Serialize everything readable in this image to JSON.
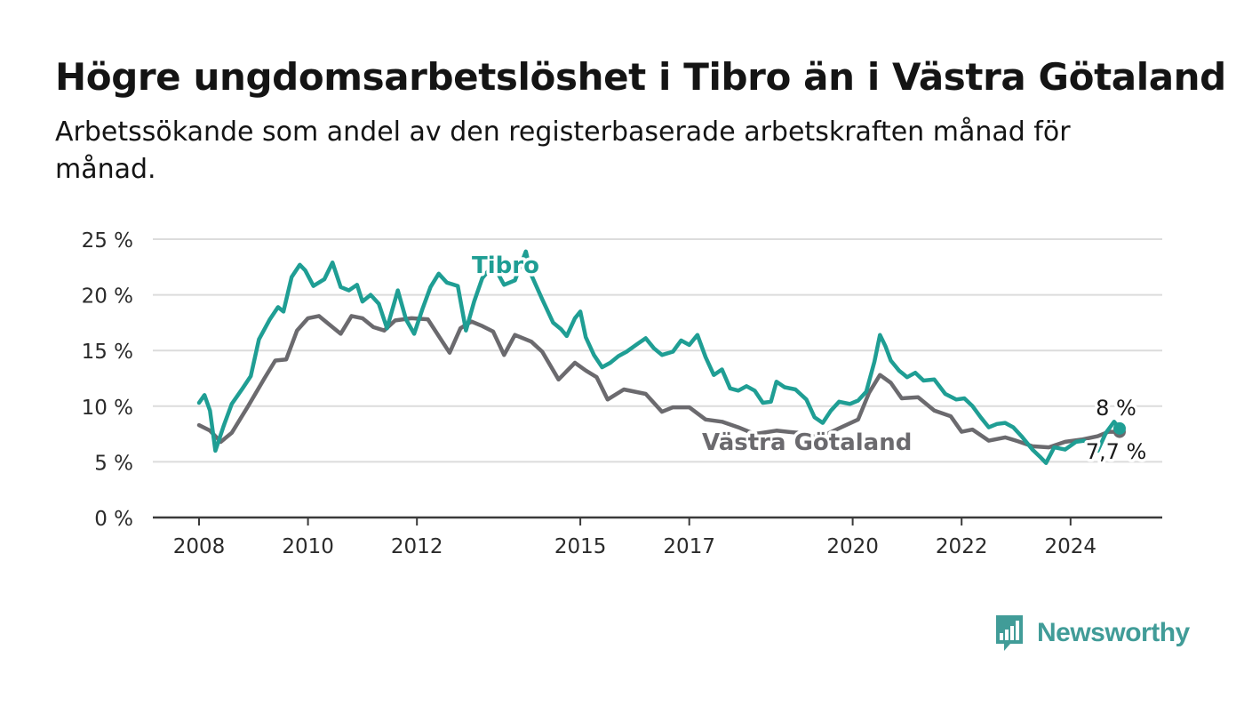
{
  "header": {
    "title": "Högre ungdomsarbetslöshet i Tibro än i Västra Götaland",
    "subtitle": "Arbetssökande som andel av den registerbaserade arbetskraften månad för månad."
  },
  "brand": {
    "name": "Newsworthy",
    "color": "#419c98"
  },
  "chart_data": {
    "type": "line",
    "ylim": [
      0,
      25
    ],
    "y_ticks": [
      0,
      5,
      10,
      15,
      20,
      25
    ],
    "y_tick_labels": [
      "0 %",
      "5 %",
      "10 %",
      "15 %",
      "20 %",
      "25 %"
    ],
    "x_ticks": [
      2008,
      2010,
      2012,
      2015,
      2017,
      2020,
      2022,
      2024
    ],
    "x_tick_labels": [
      "2008",
      "2010",
      "2012",
      "2015",
      "2017",
      "2020",
      "2022",
      "2024"
    ],
    "grid": true,
    "series": [
      {
        "name": "Västra Götaland",
        "color": "#6b6a6e",
        "end_label": "7,7 %",
        "points": [
          [
            2008.0,
            8.3
          ],
          [
            2008.2,
            7.8
          ],
          [
            2008.4,
            6.8
          ],
          [
            2008.6,
            7.6
          ],
          [
            2008.9,
            10.0
          ],
          [
            2009.2,
            12.5
          ],
          [
            2009.4,
            14.1
          ],
          [
            2009.6,
            14.2
          ],
          [
            2009.8,
            16.8
          ],
          [
            2010.0,
            17.9
          ],
          [
            2010.2,
            18.1
          ],
          [
            2010.4,
            17.3
          ],
          [
            2010.6,
            16.5
          ],
          [
            2010.8,
            18.1
          ],
          [
            2011.0,
            17.9
          ],
          [
            2011.2,
            17.1
          ],
          [
            2011.4,
            16.8
          ],
          [
            2011.6,
            17.7
          ],
          [
            2011.9,
            17.9
          ],
          [
            2012.2,
            17.8
          ],
          [
            2012.4,
            16.3
          ],
          [
            2012.6,
            14.8
          ],
          [
            2012.8,
            17.0
          ],
          [
            2013.0,
            17.6
          ],
          [
            2013.2,
            17.2
          ],
          [
            2013.4,
            16.7
          ],
          [
            2013.6,
            14.6
          ],
          [
            2013.8,
            16.4
          ],
          [
            2014.1,
            15.8
          ],
          [
            2014.3,
            14.9
          ],
          [
            2014.6,
            12.4
          ],
          [
            2014.9,
            13.9
          ],
          [
            2015.1,
            13.2
          ],
          [
            2015.3,
            12.6
          ],
          [
            2015.5,
            10.6
          ],
          [
            2015.8,
            11.5
          ],
          [
            2016.2,
            11.1
          ],
          [
            2016.5,
            9.5
          ],
          [
            2016.7,
            9.9
          ],
          [
            2017.0,
            9.9
          ],
          [
            2017.3,
            8.8
          ],
          [
            2017.6,
            8.6
          ],
          [
            2017.9,
            8.1
          ],
          [
            2018.2,
            7.5
          ],
          [
            2018.6,
            7.8
          ],
          [
            2019.0,
            7.6
          ],
          [
            2019.4,
            7.2
          ],
          [
            2019.7,
            7.9
          ],
          [
            2020.1,
            8.8
          ],
          [
            2020.3,
            11.2
          ],
          [
            2020.5,
            12.8
          ],
          [
            2020.7,
            12.1
          ],
          [
            2020.9,
            10.7
          ],
          [
            2021.2,
            10.8
          ],
          [
            2021.5,
            9.6
          ],
          [
            2021.8,
            9.1
          ],
          [
            2022.0,
            7.7
          ],
          [
            2022.2,
            7.9
          ],
          [
            2022.5,
            6.9
          ],
          [
            2022.8,
            7.2
          ],
          [
            2023.0,
            6.9
          ],
          [
            2023.3,
            6.4
          ],
          [
            2023.6,
            6.3
          ],
          [
            2023.9,
            6.8
          ],
          [
            2024.2,
            7.0
          ],
          [
            2024.5,
            7.3
          ],
          [
            2024.7,
            7.7
          ],
          [
            2024.9,
            7.7
          ]
        ]
      },
      {
        "name": "Tibro",
        "color": "#1f9e94",
        "end_label": "8 %",
        "points": [
          [
            2008.0,
            10.3
          ],
          [
            2008.1,
            11.0
          ],
          [
            2008.2,
            9.6
          ],
          [
            2008.3,
            6.0
          ],
          [
            2008.45,
            8.2
          ],
          [
            2008.6,
            10.2
          ],
          [
            2008.8,
            11.6
          ],
          [
            2008.95,
            12.7
          ],
          [
            2009.1,
            16.0
          ],
          [
            2009.3,
            17.8
          ],
          [
            2009.45,
            18.9
          ],
          [
            2009.55,
            18.5
          ],
          [
            2009.7,
            21.6
          ],
          [
            2009.85,
            22.7
          ],
          [
            2009.95,
            22.2
          ],
          [
            2010.1,
            20.8
          ],
          [
            2010.3,
            21.4
          ],
          [
            2010.45,
            22.9
          ],
          [
            2010.6,
            20.7
          ],
          [
            2010.75,
            20.4
          ],
          [
            2010.9,
            20.9
          ],
          [
            2011.0,
            19.4
          ],
          [
            2011.15,
            20.0
          ],
          [
            2011.3,
            19.2
          ],
          [
            2011.45,
            17.0
          ],
          [
            2011.65,
            20.4
          ],
          [
            2011.8,
            17.8
          ],
          [
            2011.95,
            16.5
          ],
          [
            2012.1,
            18.7
          ],
          [
            2012.25,
            20.7
          ],
          [
            2012.4,
            21.9
          ],
          [
            2012.55,
            21.1
          ],
          [
            2012.75,
            20.8
          ],
          [
            2012.9,
            16.8
          ],
          [
            2013.05,
            19.4
          ],
          [
            2013.2,
            21.5
          ],
          [
            2013.4,
            22.7
          ],
          [
            2013.6,
            20.9
          ],
          [
            2013.8,
            21.3
          ],
          [
            2014.0,
            23.9
          ],
          [
            2014.1,
            21.8
          ],
          [
            2014.3,
            19.6
          ],
          [
            2014.5,
            17.5
          ],
          [
            2014.65,
            16.9
          ],
          [
            2014.75,
            16.3
          ],
          [
            2014.9,
            17.9
          ],
          [
            2015.0,
            18.5
          ],
          [
            2015.1,
            16.2
          ],
          [
            2015.25,
            14.6
          ],
          [
            2015.4,
            13.5
          ],
          [
            2015.55,
            13.9
          ],
          [
            2015.7,
            14.5
          ],
          [
            2015.85,
            14.9
          ],
          [
            2016.05,
            15.6
          ],
          [
            2016.2,
            16.1
          ],
          [
            2016.35,
            15.2
          ],
          [
            2016.5,
            14.6
          ],
          [
            2016.7,
            14.9
          ],
          [
            2016.85,
            15.9
          ],
          [
            2017.0,
            15.5
          ],
          [
            2017.15,
            16.4
          ],
          [
            2017.3,
            14.4
          ],
          [
            2017.45,
            12.8
          ],
          [
            2017.6,
            13.3
          ],
          [
            2017.75,
            11.6
          ],
          [
            2017.9,
            11.4
          ],
          [
            2018.05,
            11.8
          ],
          [
            2018.2,
            11.4
          ],
          [
            2018.35,
            10.3
          ],
          [
            2018.5,
            10.4
          ],
          [
            2018.6,
            12.2
          ],
          [
            2018.75,
            11.7
          ],
          [
            2018.95,
            11.5
          ],
          [
            2019.15,
            10.6
          ],
          [
            2019.3,
            9.0
          ],
          [
            2019.45,
            8.5
          ],
          [
            2019.6,
            9.6
          ],
          [
            2019.75,
            10.4
          ],
          [
            2019.95,
            10.2
          ],
          [
            2020.1,
            10.5
          ],
          [
            2020.25,
            11.3
          ],
          [
            2020.4,
            14.0
          ],
          [
            2020.5,
            16.4
          ],
          [
            2020.6,
            15.4
          ],
          [
            2020.7,
            14.1
          ],
          [
            2020.85,
            13.2
          ],
          [
            2021.0,
            12.6
          ],
          [
            2021.15,
            13.0
          ],
          [
            2021.3,
            12.3
          ],
          [
            2021.5,
            12.4
          ],
          [
            2021.7,
            11.1
          ],
          [
            2021.9,
            10.6
          ],
          [
            2022.05,
            10.7
          ],
          [
            2022.2,
            10.0
          ],
          [
            2022.35,
            9.0
          ],
          [
            2022.5,
            8.1
          ],
          [
            2022.65,
            8.4
          ],
          [
            2022.8,
            8.5
          ],
          [
            2022.95,
            8.1
          ],
          [
            2023.1,
            7.3
          ],
          [
            2023.3,
            6.1
          ],
          [
            2023.45,
            5.4
          ],
          [
            2023.55,
            4.9
          ],
          [
            2023.7,
            6.3
          ],
          [
            2023.9,
            6.1
          ],
          [
            2024.1,
            6.8
          ],
          [
            2024.25,
            6.9
          ],
          [
            2024.4,
            6.4
          ],
          [
            2024.5,
            6.0
          ],
          [
            2024.65,
            7.6
          ],
          [
            2024.8,
            8.6
          ],
          [
            2024.9,
            8.0
          ]
        ]
      }
    ]
  }
}
